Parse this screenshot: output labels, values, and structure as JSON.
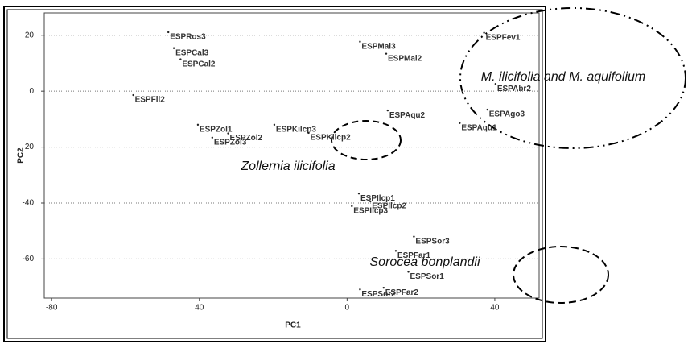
{
  "chart_data": {
    "type": "scatter",
    "xlabel": "PC1",
    "ylabel": "PC2",
    "xlim": [
      -82,
      52
    ],
    "ylim": [
      -74,
      28
    ],
    "xticks": [
      -80,
      {
        "value": -40,
        "label": "40"
      },
      0,
      40
    ],
    "yticks": [
      20,
      0,
      {
        "value": -20,
        "label": "20"
      },
      -40,
      -60
    ],
    "grid": true,
    "color": "#222222",
    "points": [
      {
        "label": "ESPRos3",
        "x": -48.4,
        "y": 21.1
      },
      {
        "label": "ESPCal3",
        "x": -46.9,
        "y": 15.4
      },
      {
        "label": "ESPCal2",
        "x": -45.1,
        "y": 11.4
      },
      {
        "label": "ESPFil2",
        "x": -57.9,
        "y": -1.4
      },
      {
        "label": "ESPZol1",
        "x": -40.4,
        "y": -12
      },
      {
        "label": "ESPZol3",
        "x": -36.5,
        "y": -16.6
      },
      {
        "label": "ESPZol2",
        "x": -32.2,
        "y": -15.1
      },
      {
        "label": "ESPKilcp3",
        "x": -19.7,
        "y": -12
      },
      {
        "label": "ESPKilcp2",
        "x": -10.4,
        "y": -14.9
      },
      {
        "label": "ESPMal3",
        "x": 3.5,
        "y": 17.7
      },
      {
        "label": "ESPMal2",
        "x": 10.6,
        "y": 13.4
      },
      {
        "label": "ESPAqu2",
        "x": 11,
        "y": -6.9
      },
      {
        "label": "ESPAqu1",
        "x": 30.5,
        "y": -11.4
      },
      {
        "label": "ESPAgo3",
        "x": 38,
        "y": -6.6
      },
      {
        "label": "ESPAbr2",
        "x": 40.2,
        "y": 2.6
      },
      {
        "label": "ESPFev1",
        "x": 37.1,
        "y": 20.9
      },
      {
        "label": "ESPIlcp1",
        "x": 3.2,
        "y": -36.6
      },
      {
        "label": "ESPIlcp2",
        "x": 6.3,
        "y": -39.4
      },
      {
        "label": "ESPIlcp3",
        "x": 1.3,
        "y": -41.1
      },
      {
        "label": "ESPSor3",
        "x": 18.1,
        "y": -52
      },
      {
        "label": "ESPFar1",
        "x": 13.2,
        "y": -57.1
      },
      {
        "label": "ESPSor1",
        "x": 16.6,
        "y": -64.6
      },
      {
        "label": "ESPFar2",
        "x": 9.9,
        "y": -70.3
      },
      {
        "label": "ESPSor2",
        "x": 3.5,
        "y": -70.9
      }
    ],
    "annotations": [
      "M. ilicifolia and M. aquifolium",
      "Zollernia ilicifolia",
      "Sorocea bonplandii"
    ]
  }
}
